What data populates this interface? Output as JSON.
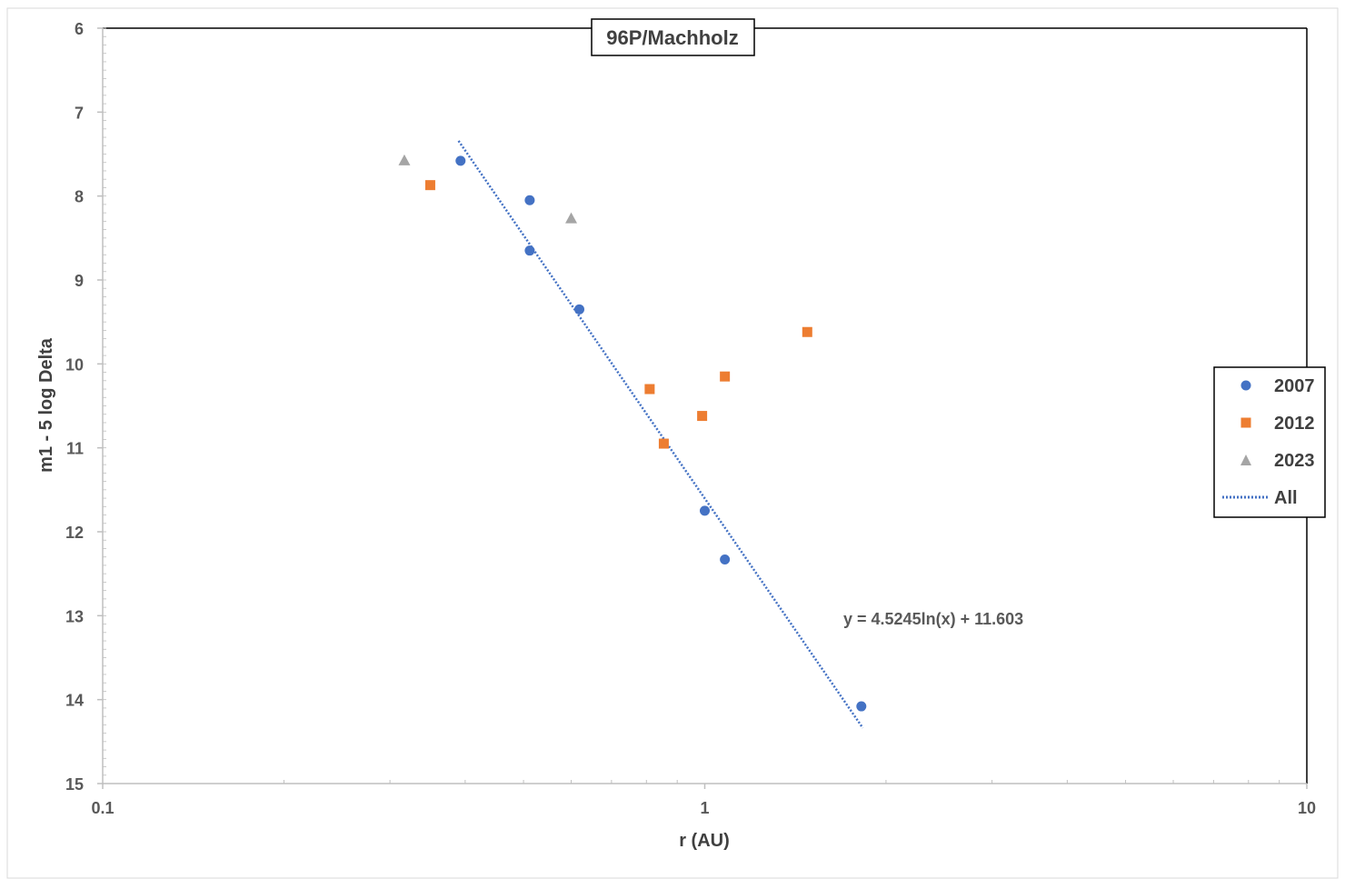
{
  "chart_data": {
    "type": "scatter",
    "title": "96P/Machholz",
    "xlabel": "r (AU)",
    "ylabel": "m1 - 5 log Delta",
    "x_scale": "log",
    "xlim": [
      0.1,
      10
    ],
    "ylim": [
      6,
      15
    ],
    "y_reversed": true,
    "x_ticks": [
      {
        "value": 0.1,
        "label": "0.1"
      },
      {
        "value": 1,
        "label": "1"
      },
      {
        "value": 10,
        "label": "10"
      }
    ],
    "y_ticks": [
      {
        "value": 6,
        "label": "6"
      },
      {
        "value": 7,
        "label": "7"
      },
      {
        "value": 8,
        "label": "8"
      },
      {
        "value": 9,
        "label": "9"
      },
      {
        "value": 10,
        "label": "10"
      },
      {
        "value": 11,
        "label": "11"
      },
      {
        "value": 12,
        "label": "12"
      },
      {
        "value": 13,
        "label": "13"
      },
      {
        "value": 14,
        "label": "14"
      },
      {
        "value": 15,
        "label": "15"
      }
    ],
    "grid": false,
    "legend_position": "right",
    "series": [
      {
        "name": "2007",
        "marker": "circle",
        "color": "#4472c4",
        "points": [
          [
            0.393,
            7.58
          ],
          [
            0.512,
            8.05
          ],
          [
            0.512,
            8.65
          ],
          [
            0.619,
            9.35
          ],
          [
            1.0,
            11.75
          ],
          [
            1.08,
            12.33
          ],
          [
            1.82,
            14.08
          ]
        ]
      },
      {
        "name": "2012",
        "marker": "square",
        "color": "#ed7d31",
        "points": [
          [
            0.35,
            7.87
          ],
          [
            0.81,
            10.3
          ],
          [
            0.855,
            10.95
          ],
          [
            0.99,
            10.62
          ],
          [
            1.08,
            10.15
          ],
          [
            1.48,
            9.62
          ]
        ]
      },
      {
        "name": "2023",
        "marker": "triangle",
        "color": "#a5a5a5",
        "points": [
          [
            0.317,
            7.58
          ],
          [
            0.6,
            8.27
          ]
        ]
      }
    ],
    "trendline": {
      "name": "All",
      "style": "dotted",
      "color": "#4472c4",
      "slope": 4.5245,
      "intercept": 11.603,
      "x_range": [
        0.39,
        1.83
      ],
      "equation_label": "y = 4.5245ln(x) + 11.603"
    }
  }
}
